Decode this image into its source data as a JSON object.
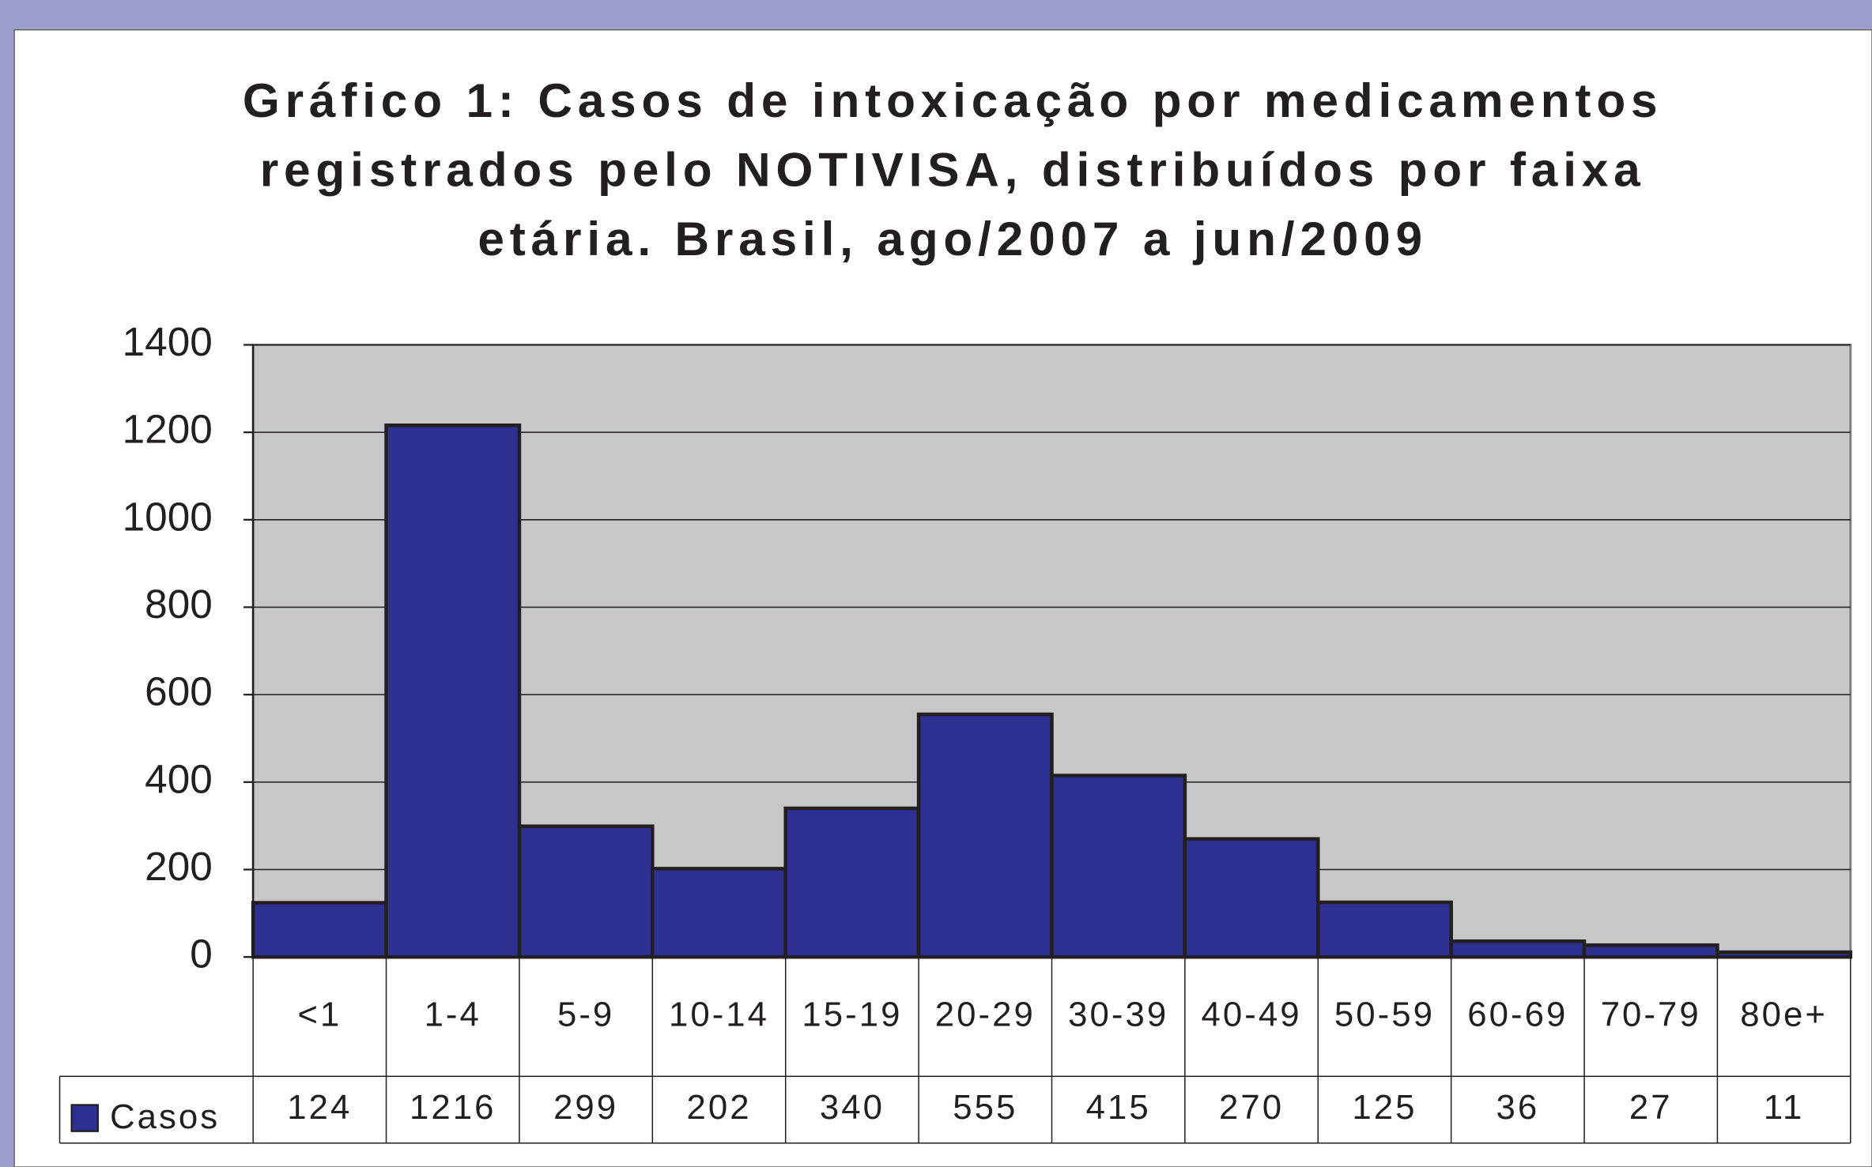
{
  "chart_data": {
    "type": "bar",
    "title": "Gráfico 1: Casos de intoxicação por medicamentos registrados pelo NOTIVISA, distribuídos por faixa etária. Brasil, ago/2007 a jun/2009",
    "categories": [
      "<1",
      "1-4",
      "5-9",
      "10-14",
      "15-19",
      "20-29",
      "30-39",
      "40-49",
      "50-59",
      "60-69",
      "70-79",
      "80e+"
    ],
    "series": [
      {
        "name": "Casos",
        "color": "#2e3192",
        "values": [
          124,
          1216,
          299,
          202,
          340,
          555,
          415,
          270,
          125,
          36,
          27,
          11
        ]
      }
    ],
    "ylim": [
      0,
      1400
    ],
    "yticks": [
      0,
      200,
      400,
      600,
      800,
      1000,
      1200,
      1400
    ],
    "grid": true,
    "data_table": true
  }
}
